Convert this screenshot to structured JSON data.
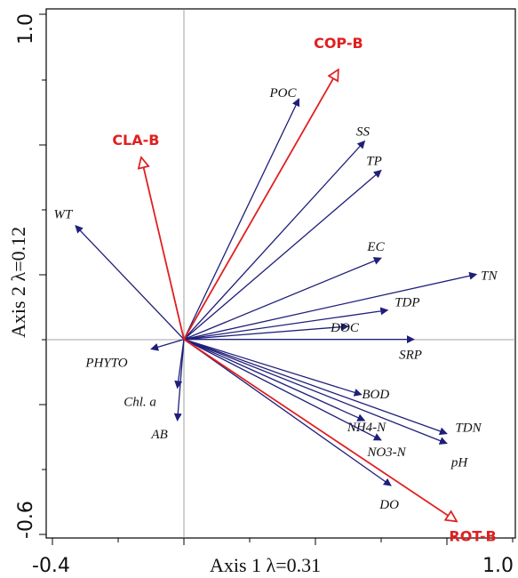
{
  "chart_data": {
    "type": "biplot",
    "xlabel": "Axis 1  λ=0.31",
    "ylabel": "Axis 2  λ=0.12",
    "xlim": [
      -0.4,
      1.0
    ],
    "ylim": [
      -0.6,
      1.0
    ],
    "x_tick_labels": [
      "-0.4",
      "1.0"
    ],
    "y_tick_labels": [
      "1.0",
      "-0.6"
    ],
    "grid": false,
    "zero_lines": true,
    "colors": {
      "environment": "#1f1f7a",
      "species": "#e02020"
    },
    "environmental_vectors": [
      {
        "label": "POC",
        "x": 0.35,
        "y": 0.74
      },
      {
        "label": "SS",
        "x": 0.55,
        "y": 0.61
      },
      {
        "label": "TP",
        "x": 0.6,
        "y": 0.52
      },
      {
        "label": "WT",
        "x": -0.33,
        "y": 0.35
      },
      {
        "label": "EC",
        "x": 0.6,
        "y": 0.25
      },
      {
        "label": "TN",
        "x": 0.89,
        "y": 0.2
      },
      {
        "label": "TDP",
        "x": 0.62,
        "y": 0.09
      },
      {
        "label": "DOC",
        "x": 0.5,
        "y": 0.04
      },
      {
        "label": "SRP",
        "x": 0.7,
        "y": 0.0
      },
      {
        "label": "PHYTO",
        "x": -0.1,
        "y": -0.03
      },
      {
        "label": "BOD",
        "x": 0.54,
        "y": -0.17
      },
      {
        "label": "Chl. a",
        "x": -0.02,
        "y": -0.15
      },
      {
        "label": "AB",
        "x": -0.02,
        "y": -0.25
      },
      {
        "label": "NH4-N",
        "x": 0.55,
        "y": -0.25
      },
      {
        "label": "NO3-N",
        "x": 0.6,
        "y": -0.31
      },
      {
        "label": "TDN",
        "x": 0.8,
        "y": -0.29
      },
      {
        "label": "pH",
        "x": 0.8,
        "y": -0.32
      },
      {
        "label": "DO",
        "x": 0.63,
        "y": -0.45
      }
    ],
    "species_vectors": [
      {
        "label": "COP-B",
        "x": 0.47,
        "y": 0.83
      },
      {
        "label": "CLA-B",
        "x": -0.13,
        "y": 0.56
      },
      {
        "label": "ROT-B",
        "x": 0.83,
        "y": -0.56
      }
    ]
  }
}
